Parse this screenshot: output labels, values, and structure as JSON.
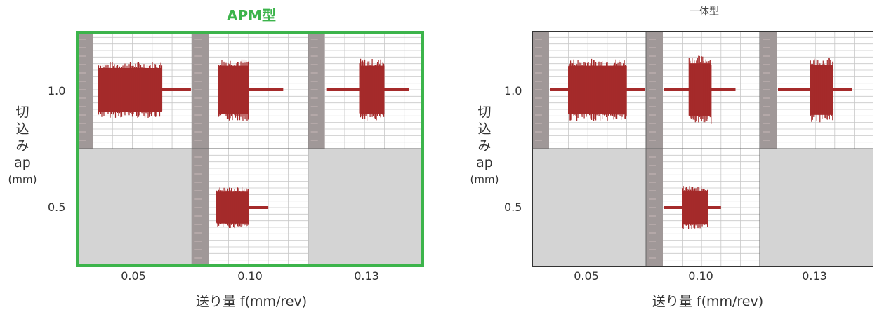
{
  "chart_data": [
    {
      "type": "heatmap",
      "title": "APM型",
      "title_color": "#3cb44b",
      "highlight_border": true,
      "border_color": "#3cb44b",
      "ylabel_chars": [
        "切",
        "込",
        "み",
        "ap"
      ],
      "ylabel_unit": "(mm)",
      "xlabel": "送り量 f(mm/rev)",
      "x_categories": [
        "0.05",
        "0.10",
        "0.13"
      ],
      "y_categories": [
        "1.0",
        "0.5"
      ],
      "cells": [
        {
          "depth": "1.0",
          "feed": "0.05",
          "has_data": true,
          "burst_start": 0.06,
          "burst_end": 0.7,
          "amplitude": 0.45,
          "lead_in": false,
          "tail_end": 0.99
        },
        {
          "depth": "1.0",
          "feed": "0.10",
          "has_data": true,
          "burst_start": 0.1,
          "burst_end": 0.4,
          "amplitude": 0.5,
          "lead_in": false,
          "tail_end": 0.75
        },
        {
          "depth": "1.0",
          "feed": "0.13",
          "has_data": true,
          "burst_start": 0.35,
          "burst_end": 0.6,
          "amplitude": 0.5,
          "lead_in": true,
          "tail_end": 0.85
        },
        {
          "depth": "0.5",
          "feed": "0.05",
          "has_data": false
        },
        {
          "depth": "0.5",
          "feed": "0.10",
          "has_data": true,
          "burst_start": 0.08,
          "burst_end": 0.4,
          "amplitude": 0.33,
          "lead_in": false,
          "tail_end": 0.6
        },
        {
          "depth": "0.5",
          "feed": "0.13",
          "has_data": false
        }
      ]
    },
    {
      "type": "heatmap",
      "title": "一体型",
      "title_color": "#444444",
      "highlight_border": false,
      "border_color": "#333333",
      "ylabel_chars": [
        "切",
        "込",
        "み",
        "ap"
      ],
      "ylabel_unit": "(mm)",
      "xlabel": "送り量 f(mm/rev)",
      "x_categories": [
        "0.05",
        "0.10",
        "0.13"
      ],
      "y_categories": [
        "1.0",
        "0.5"
      ],
      "cells": [
        {
          "depth": "1.0",
          "feed": "0.05",
          "has_data": true,
          "burst_start": 0.2,
          "burst_end": 0.8,
          "amplitude": 0.5,
          "lead_in": true,
          "tail_end": 0.99
        },
        {
          "depth": "1.0",
          "feed": "0.10",
          "has_data": true,
          "burst_start": 0.27,
          "burst_end": 0.5,
          "amplitude": 0.55,
          "lead_in": true,
          "tail_end": 0.75
        },
        {
          "depth": "1.0",
          "feed": "0.13",
          "has_data": true,
          "burst_start": 0.35,
          "burst_end": 0.58,
          "amplitude": 0.52,
          "lead_in": true,
          "tail_end": 0.78
        },
        {
          "depth": "0.5",
          "feed": "0.05",
          "has_data": false
        },
        {
          "depth": "0.5",
          "feed": "0.10",
          "has_data": true,
          "burst_start": 0.2,
          "burst_end": 0.47,
          "amplitude": 0.35,
          "lead_in": true,
          "tail_end": 0.6
        },
        {
          "depth": "0.5",
          "feed": "0.13",
          "has_data": false
        }
      ]
    }
  ],
  "colors": {
    "signal": "#a52a2a",
    "empty_cell": "#d4d4d4",
    "time_strip": "#a09898",
    "grid_line": "#c8c8c8",
    "cell_divider": "#666666"
  }
}
